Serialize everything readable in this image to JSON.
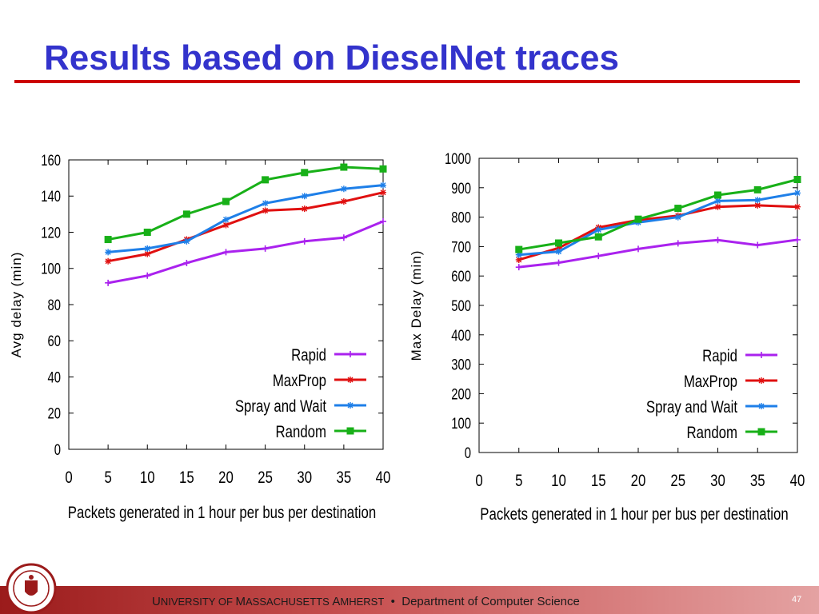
{
  "slide": {
    "title": "Results based on DieselNet traces",
    "page_number": "47"
  },
  "footer": {
    "u": "U",
    "university": "NIVERSITY OF ",
    "m": "M",
    "massachusetts": "ASSACHUSETTS ",
    "a": "A",
    "amherst": "MHERST",
    "bullet": "•",
    "department": "Department of Computer Science"
  },
  "colors": {
    "title": "#3333cc",
    "rule": "#cc0000",
    "footer": "#9b1b1b"
  },
  "seal_icon": "university-seal-icon",
  "chart_data": [
    {
      "type": "line",
      "title": "",
      "xlabel": "Packets generated in 1 hour per bus per destination",
      "ylabel": "Avg delay (min)",
      "xlim": [
        0,
        40
      ],
      "ylim": [
        0,
        160
      ],
      "xticks": [
        0,
        5,
        10,
        15,
        20,
        25,
        30,
        35,
        40
      ],
      "yticks": [
        0,
        20,
        40,
        60,
        80,
        100,
        120,
        140,
        160
      ],
      "grid": false,
      "legend_position": "bottom-right",
      "x": [
        5,
        10,
        15,
        20,
        25,
        30,
        35,
        40
      ],
      "series": [
        {
          "name": "Rapid",
          "color": "#aa22ee",
          "marker": "plus",
          "values": [
            92,
            96,
            103,
            109,
            111,
            115,
            117,
            126
          ]
        },
        {
          "name": "MaxProp",
          "color": "#e01010",
          "marker": "star",
          "values": [
            104,
            108,
            116,
            124,
            132,
            133,
            137,
            142
          ]
        },
        {
          "name": "Spray and Wait",
          "color": "#1e7fe8",
          "marker": "star",
          "values": [
            109,
            111,
            115,
            127,
            136,
            140,
            144,
            146
          ]
        },
        {
          "name": "Random",
          "color": "#18b018",
          "marker": "square",
          "values": [
            116,
            120,
            130,
            137,
            149,
            153,
            156,
            155
          ]
        }
      ]
    },
    {
      "type": "line",
      "title": "",
      "xlabel": "Packets generated in 1 hour per bus per destination",
      "ylabel": "Max Delay (min)",
      "xlim": [
        0,
        40
      ],
      "ylim": [
        0,
        1000
      ],
      "xticks": [
        0,
        5,
        10,
        15,
        20,
        25,
        30,
        35,
        40
      ],
      "yticks": [
        0,
        100,
        200,
        300,
        400,
        500,
        600,
        700,
        800,
        900,
        1000
      ],
      "grid": false,
      "legend_position": "bottom-right",
      "x": [
        5,
        10,
        15,
        20,
        25,
        30,
        35,
        40
      ],
      "series": [
        {
          "name": "Rapid",
          "color": "#aa22ee",
          "marker": "plus",
          "values": [
            630,
            645,
            668,
            692,
            711,
            722,
            705,
            723
          ]
        },
        {
          "name": "MaxProp",
          "color": "#e01010",
          "marker": "star",
          "values": [
            655,
            695,
            765,
            790,
            805,
            835,
            840,
            835
          ]
        },
        {
          "name": "Spray and Wait",
          "color": "#1e7fe8",
          "marker": "star",
          "values": [
            672,
            683,
            757,
            782,
            800,
            855,
            858,
            882
          ]
        },
        {
          "name": "Random",
          "color": "#18b018",
          "marker": "square",
          "values": [
            690,
            712,
            733,
            793,
            830,
            875,
            893,
            928
          ]
        }
      ]
    }
  ]
}
